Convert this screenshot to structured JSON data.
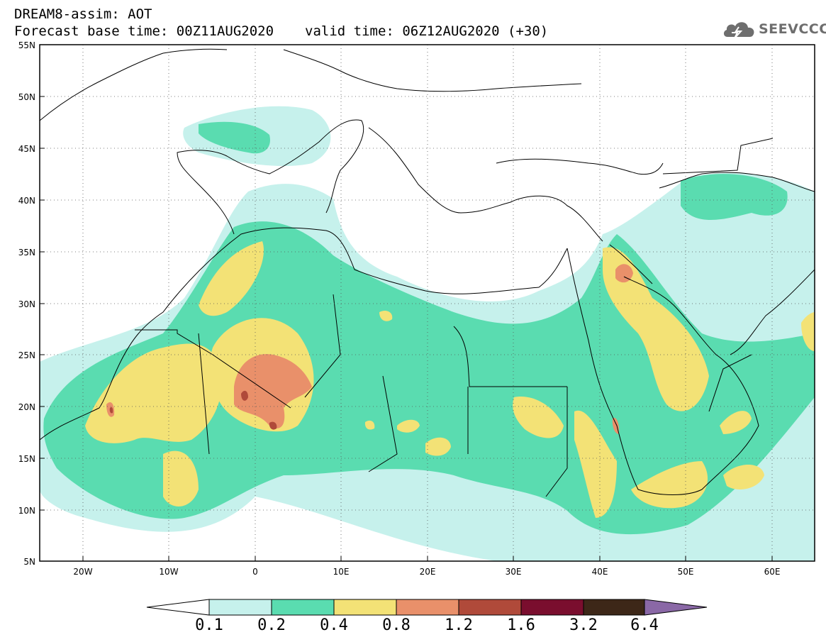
{
  "title": {
    "line1": "DREAM8-assim: AOT",
    "base": "Forecast base time: 00Z11AUG2020",
    "valid": "valid time: 06Z12AUG2020 (+30)"
  },
  "logo": {
    "text": "SEEVCCC",
    "icon": "cloud-logo-icon"
  },
  "map": {
    "lat_labels": [
      "55N",
      "50N",
      "45N",
      "40N",
      "35N",
      "30N",
      "25N",
      "20N",
      "15N",
      "10N",
      "5N"
    ],
    "lon_labels": [
      "20W",
      "10W",
      "0",
      "10E",
      "20E",
      "30E",
      "40E",
      "50E",
      "60E"
    ],
    "extent": {
      "lon": [
        -25,
        65
      ],
      "lat": [
        5,
        55
      ]
    },
    "gridlines": "dotted"
  },
  "colorbar": {
    "labels": [
      "0.1",
      "0.2",
      "0.4",
      "0.8",
      "1.2",
      "1.6",
      "3.2",
      "6.4"
    ],
    "colors": [
      "#c6f1ec",
      "#5adcb0",
      "#f3e276",
      "#e9906a",
      "#b04a3a",
      "#7a0e2e",
      "#3d2718",
      "#8a68a6"
    ],
    "under_color": "#ffffff"
  }
}
